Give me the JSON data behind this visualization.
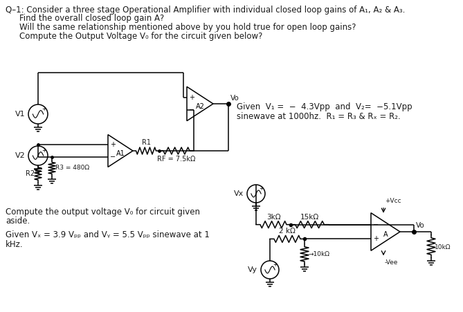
{
  "bg_color": "#ffffff",
  "line_color": "#000000",
  "fig_width": 6.69,
  "fig_height": 4.51,
  "text_color_dark": "#2b2b2b",
  "q1": "Q–1: Consider a three stage Operational Amplifier with individual closed loop gains of A₁, A₂ & A₃.",
  "q2": "Find the overall closed loop gain A?",
  "q3": "Will the same relationship mentioned above by you hold true for open loop gains?",
  "q4": "Compute the Output Voltage V₀ for the circuit given below?",
  "given1": "Given  V₁ =  −  4.3Vpp  and  V₂=  −5.1Vpp",
  "given2": "sinewave at 1000hz.  R₁ = R₃ & Rₓ = R₂.",
  "bottom1": "Compute the output voltage V₀ for circuit given",
  "bottom2": "aside.",
  "bottom3": "Given Vₓ = 3.9 Vₚₚ and Vᵧ = 5.5 Vₚₚ sinewave at 1",
  "bottom4": "kHz.",
  "lbl_v1": "V1",
  "lbl_v2": "V2",
  "lbl_a1": "A1",
  "lbl_a2": "A2",
  "lbl_vo": "Vo",
  "lbl_r1": "R1",
  "lbl_r2": "R2",
  "lbl_r3": "R3 = 480Ω",
  "lbl_rf": "RF = 7.5kΩ",
  "lbl_vx": "Vx",
  "lbl_vy": "Vy",
  "lbl_3k": "3kΩ",
  "lbl_15k": "15kΩ",
  "lbl_2k": "2 kΩ",
  "lbl_10k_a": "→10kΩ",
  "lbl_10k_b": "10kΩ",
  "lbl_vcc": "+Vcc",
  "lbl_vee": "-Vee",
  "lbl_a": "A",
  "lbl_vo2": "Vo"
}
